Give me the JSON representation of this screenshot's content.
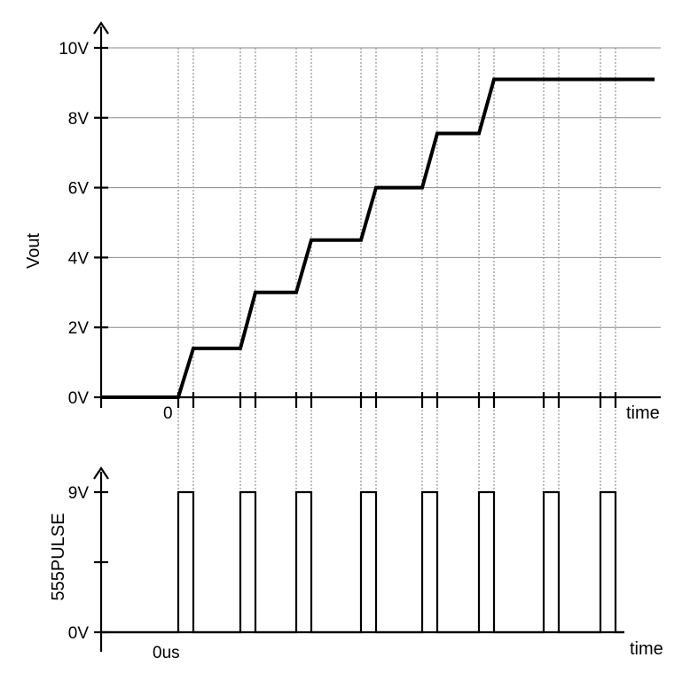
{
  "chart_data": [
    {
      "type": "line",
      "ylabel": "Vout",
      "xlabel": "time",
      "ylim": [
        0,
        10
      ],
      "yticks": [
        {
          "value": 0,
          "label": "0V"
        },
        {
          "value": 2,
          "label": "2V"
        },
        {
          "value": 4,
          "label": "4V"
        },
        {
          "value": 6,
          "label": "6V"
        },
        {
          "value": 8,
          "label": "8V"
        },
        {
          "value": 10,
          "label": "10V"
        }
      ],
      "x_origin_label": "0",
      "grid": true,
      "step_voltages": [
        0,
        1.4,
        3.0,
        4.5,
        6.0,
        7.55,
        9.1,
        9.1,
        9.1
      ],
      "series": [
        {
          "values": [
            0,
            1.4,
            3.0,
            4.5,
            6.0,
            7.55,
            9.1,
            9.1,
            9.1
          ]
        }
      ]
    },
    {
      "type": "line",
      "ylabel": "555PULSE",
      "xlabel": "time",
      "ylim": [
        0,
        9
      ],
      "yticks": [
        {
          "value": 0,
          "label": "0V"
        },
        {
          "value": 4.5,
          "label": ""
        },
        {
          "value": 9,
          "label": "9V"
        }
      ],
      "x_origin_label": "0us",
      "pulse_high": 9,
      "pulse_count": 8,
      "series": [
        {
          "values": [
            0,
            9,
            0,
            9,
            0,
            9,
            0,
            9,
            0,
            9,
            0,
            9,
            0,
            9,
            0,
            9,
            0
          ]
        }
      ]
    }
  ]
}
